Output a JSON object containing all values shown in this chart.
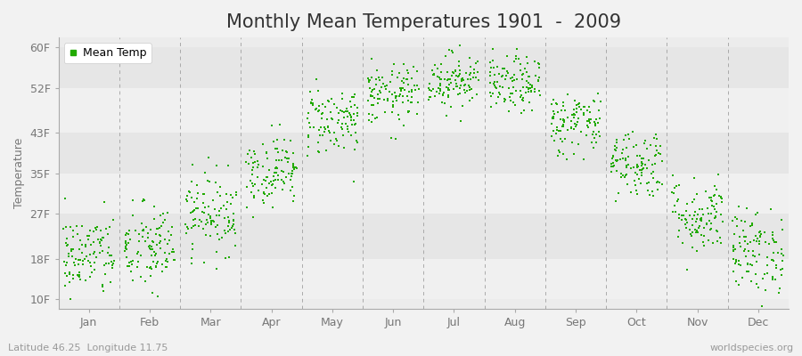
{
  "title": "Monthly Mean Temperatures 1901  -  2009",
  "ylabel": "Temperature",
  "xlabel_bottom_left": "Latitude 46.25  Longitude 11.75",
  "xlabel_bottom_right": "worldspecies.org",
  "yticks": [
    10,
    18,
    27,
    35,
    43,
    52,
    60
  ],
  "ytick_labels": [
    "10F",
    "18F",
    "27F",
    "35F",
    "43F",
    "52F",
    "60F"
  ],
  "ylim": [
    8,
    62
  ],
  "months": [
    "Jan",
    "Feb",
    "Mar",
    "Apr",
    "May",
    "Jun",
    "Jul",
    "Aug",
    "Sep",
    "Oct",
    "Nov",
    "Dec"
  ],
  "dot_color": "#22aa00",
  "dot_size": 3.5,
  "background_color": "#f2f2f2",
  "plot_bg_color": "#ececec",
  "band_colors": [
    "#f0f0f0",
    "#e6e6e6"
  ],
  "legend_label": "Mean Temp",
  "title_fontsize": 15,
  "axis_label_fontsize": 9,
  "tick_fontsize": 9,
  "num_years": 109,
  "seed": 42,
  "monthly_means_F": [
    18.5,
    20.0,
    27.0,
    35.5,
    45.5,
    50.5,
    53.5,
    52.5,
    45.0,
    37.0,
    26.5,
    19.5
  ],
  "monthly_stds_F": [
    4.2,
    4.5,
    4.0,
    3.5,
    3.5,
    3.0,
    2.8,
    2.8,
    3.2,
    3.5,
    3.8,
    4.2
  ]
}
